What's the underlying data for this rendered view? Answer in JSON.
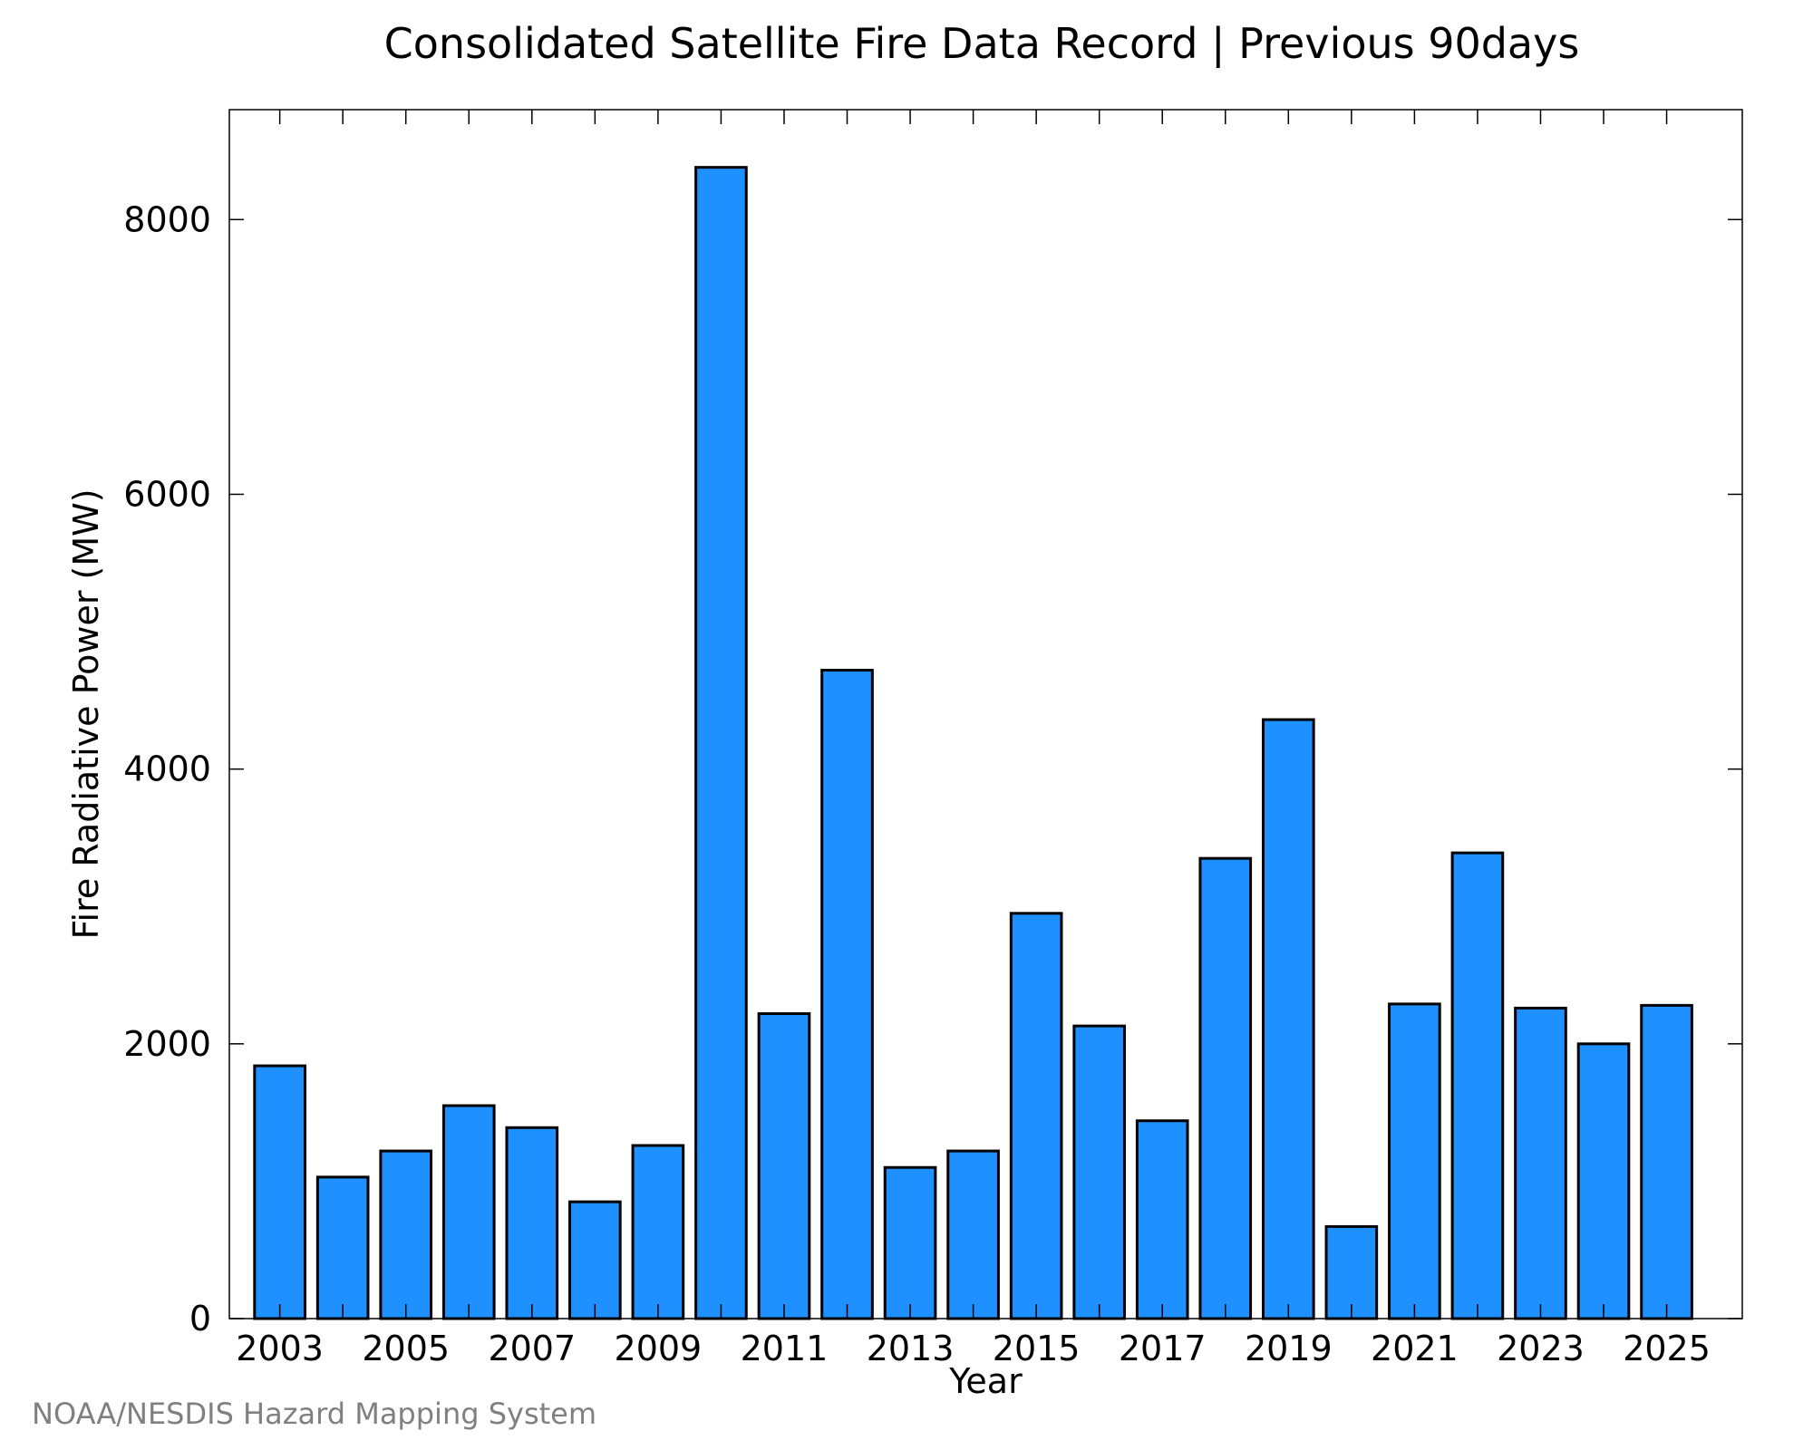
{
  "credit": "NOAA/NESDIS Hazard Mapping System",
  "colors": {
    "bar_fill": "#1e90ff",
    "bar_stroke": "#000000",
    "credit_text": "#808080"
  },
  "chart_data": {
    "type": "bar",
    "title": "Consolidated Satellite Fire Data Record | Previous 90days",
    "xlabel": "Year",
    "ylabel": "Fire Radiative Power (MW)",
    "ylim": [
      0,
      8800
    ],
    "xlim": [
      2002.2,
      2026.2
    ],
    "y_ticks": [
      0,
      2000,
      4000,
      6000,
      8000
    ],
    "x_tick_labels": [
      "2003",
      "2005",
      "2007",
      "2009",
      "2011",
      "2013",
      "2015",
      "2017",
      "2019",
      "2021",
      "2023",
      "2025"
    ],
    "grid": false,
    "legend": "none",
    "categories": [
      2003,
      2004,
      2005,
      2006,
      2007,
      2008,
      2009,
      2010,
      2011,
      2012,
      2013,
      2014,
      2015,
      2016,
      2017,
      2018,
      2019,
      2020,
      2021,
      2022,
      2023,
      2024,
      2025
    ],
    "values": [
      1840,
      1030,
      1220,
      1550,
      1390,
      850,
      1260,
      8380,
      2220,
      4720,
      1100,
      1220,
      2950,
      2130,
      1440,
      3350,
      4360,
      670,
      2290,
      3390,
      2260,
      2000,
      2280
    ]
  }
}
